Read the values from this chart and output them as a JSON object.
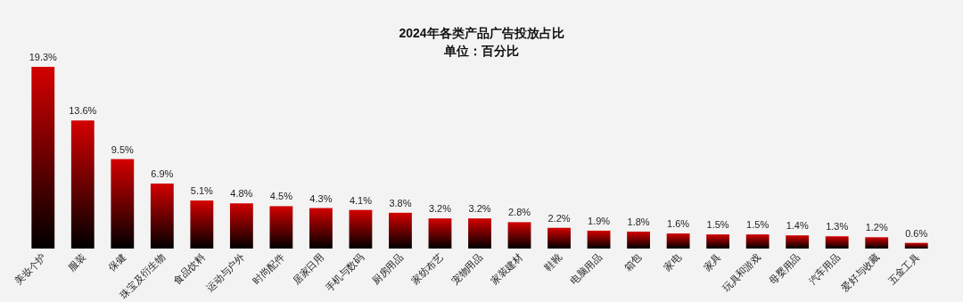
{
  "chart_data": {
    "type": "bar",
    "title": "2024年各类产品广告投放占比",
    "subtitle": "单位：百分比",
    "categories": [
      "美妆个护",
      "服装",
      "保健",
      "珠宝及衍生物",
      "食品饮料",
      "运动与户外",
      "时尚配件",
      "居家日用",
      "手机与数码",
      "厨房用品",
      "家纺布艺",
      "宠物用品",
      "家装建材",
      "鞋靴",
      "电脑用品",
      "箱包",
      "家电",
      "家具",
      "玩具和游戏",
      "母婴用品",
      "汽车用品",
      "爱好与收藏",
      "五金工具"
    ],
    "values": [
      19.3,
      13.6,
      9.5,
      6.9,
      5.1,
      4.8,
      4.5,
      4.3,
      4.1,
      3.8,
      3.2,
      3.2,
      2.8,
      2.2,
      1.9,
      1.8,
      1.6,
      1.5,
      1.5,
      1.4,
      1.3,
      1.2,
      0.6
    ],
    "value_labels": [
      "19.3%",
      "13.6%",
      "9.5%",
      "6.9%",
      "5.1%",
      "4.8%",
      "4.5%",
      "4.3%",
      "4.1%",
      "3.8%",
      "3.2%",
      "3.2%",
      "2.8%",
      "2.2%",
      "1.9%",
      "1.8%",
      "1.6%",
      "1.5%",
      "1.5%",
      "1.4%",
      "1.3%",
      "1.2%",
      "0.6%"
    ],
    "color": "#d40000"
  }
}
